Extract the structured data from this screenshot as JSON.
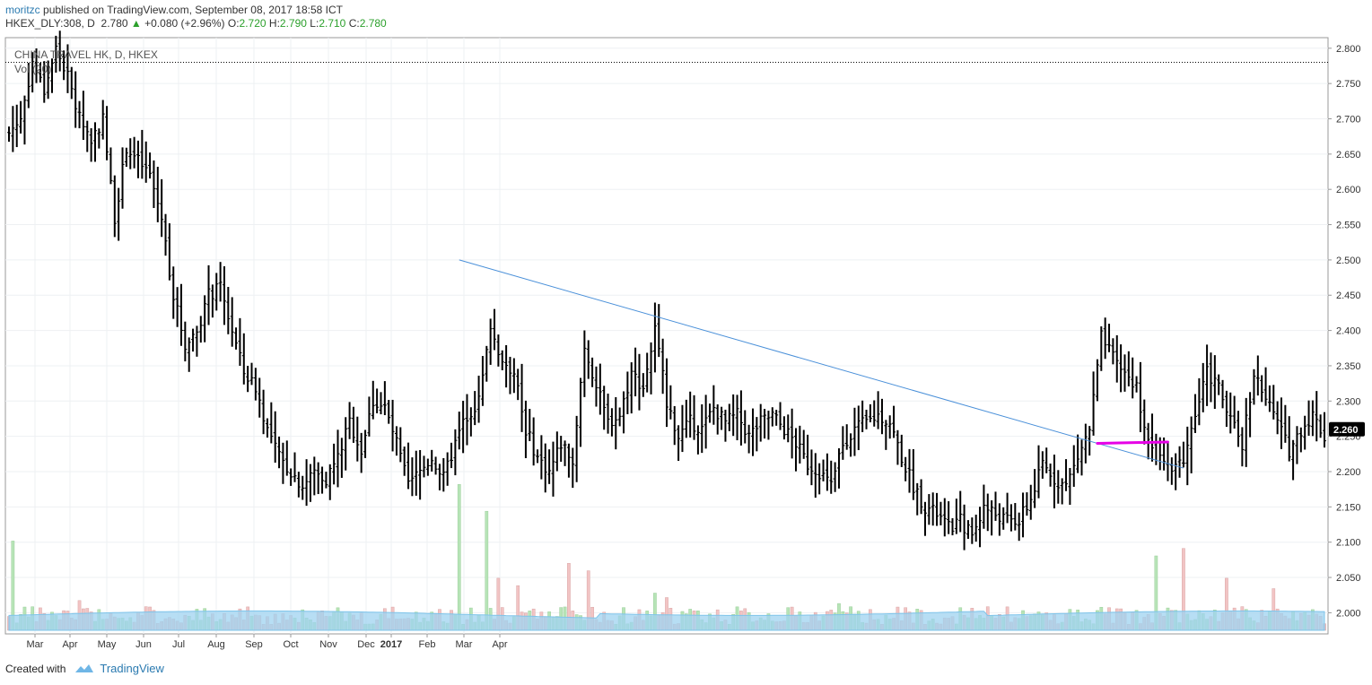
{
  "header": {
    "user": "moritzc",
    "published": "published on TradingView.com, September 08, 2017 18:58 ICT",
    "symbol": "HKEX_DLY:308, D",
    "last": "2.780",
    "change": "+0.080 (+2.96%)",
    "o_label": "O:",
    "o": "2.720",
    "h_label": "H:",
    "h": "2.790",
    "l_label": "L:",
    "l": "2.710",
    "c_label": "C:",
    "c": "2.780"
  },
  "legend": {
    "title": "CHINA TRAVEL HK, D, HKEX",
    "vol": "Vol (20)"
  },
  "footer": {
    "created": "Created with",
    "brand": "TradingView"
  },
  "colors": {
    "trendline": "#4a90d9",
    "highlight": "#e600e6",
    "up_vol": "#b7e4b7",
    "down_vol": "#f2c4c4",
    "vol_ma": "#9fd3f0",
    "bar": "#000000"
  },
  "chart_data": {
    "type": "ohlc",
    "price_axis": {
      "ticks": [
        "2.800",
        "2.750",
        "2.700",
        "2.650",
        "2.600",
        "2.550",
        "2.500",
        "2.450",
        "2.400",
        "2.350",
        "2.300",
        "2.250",
        "2.200",
        "2.150",
        "2.100",
        "2.050",
        "2.000"
      ],
      "ylim": [
        1.97,
        2.815
      ]
    },
    "x_labels": [
      "Mar",
      "Apr",
      "May",
      "Jun",
      "Jul",
      "Aug",
      "Sep",
      "Oct",
      "Nov",
      "Dec",
      "2017",
      "Feb",
      "Mar",
      "Apr"
    ],
    "last_price_label": "2.260",
    "reference_line": 2.78,
    "close_path": [
      [
        0,
        2.68
      ],
      [
        3,
        2.7
      ],
      [
        6,
        2.78
      ],
      [
        9,
        2.74
      ],
      [
        12,
        2.8
      ],
      [
        15,
        2.76
      ],
      [
        18,
        2.7
      ],
      [
        21,
        2.67
      ],
      [
        24,
        2.7
      ],
      [
        27,
        2.56
      ],
      [
        30,
        2.66
      ],
      [
        33,
        2.64
      ],
      [
        36,
        2.62
      ],
      [
        39,
        2.56
      ],
      [
        42,
        2.45
      ],
      [
        45,
        2.38
      ],
      [
        48,
        2.4
      ],
      [
        51,
        2.45
      ],
      [
        54,
        2.46
      ],
      [
        57,
        2.4
      ],
      [
        60,
        2.34
      ],
      [
        63,
        2.32
      ],
      [
        66,
        2.26
      ],
      [
        69,
        2.22
      ],
      [
        72,
        2.2
      ],
      [
        75,
        2.18
      ],
      [
        78,
        2.2
      ],
      [
        81,
        2.19
      ],
      [
        84,
        2.22
      ],
      [
        87,
        2.27
      ],
      [
        90,
        2.23
      ],
      [
        93,
        2.3
      ],
      [
        96,
        2.29
      ],
      [
        99,
        2.24
      ],
      [
        102,
        2.18
      ],
      [
        105,
        2.2
      ],
      [
        108,
        2.22
      ],
      [
        111,
        2.19
      ],
      [
        114,
        2.24
      ],
      [
        117,
        2.28
      ],
      [
        120,
        2.3
      ],
      [
        123,
        2.4
      ],
      [
        126,
        2.36
      ],
      [
        129,
        2.34
      ],
      [
        132,
        2.26
      ],
      [
        135,
        2.22
      ],
      [
        138,
        2.2
      ],
      [
        141,
        2.24
      ],
      [
        144,
        2.22
      ],
      [
        147,
        2.38
      ],
      [
        150,
        2.32
      ],
      [
        153,
        2.27
      ],
      [
        156,
        2.28
      ],
      [
        159,
        2.34
      ],
      [
        162,
        2.32
      ],
      [
        165,
        2.4
      ],
      [
        168,
        2.3
      ],
      [
        171,
        2.25
      ],
      [
        174,
        2.27
      ],
      [
        177,
        2.26
      ],
      [
        180,
        2.29
      ],
      [
        183,
        2.27
      ],
      [
        186,
        2.28
      ],
      [
        189,
        2.25
      ],
      [
        192,
        2.27
      ],
      [
        195,
        2.28
      ],
      [
        198,
        2.26
      ],
      [
        201,
        2.24
      ],
      [
        204,
        2.21
      ],
      [
        207,
        2.2
      ],
      [
        210,
        2.18
      ],
      [
        213,
        2.24
      ],
      [
        216,
        2.26
      ],
      [
        219,
        2.27
      ],
      [
        222,
        2.28
      ],
      [
        225,
        2.27
      ],
      [
        228,
        2.22
      ],
      [
        231,
        2.18
      ],
      [
        234,
        2.15
      ],
      [
        237,
        2.14
      ],
      [
        240,
        2.12
      ],
      [
        243,
        2.13
      ],
      [
        246,
        2.11
      ],
      [
        249,
        2.15
      ],
      [
        252,
        2.14
      ],
      [
        255,
        2.13
      ],
      [
        258,
        2.13
      ],
      [
        261,
        2.16
      ],
      [
        264,
        2.21
      ],
      [
        267,
        2.19
      ],
      [
        270,
        2.18
      ],
      [
        273,
        2.22
      ],
      [
        276,
        2.26
      ],
      [
        279,
        2.39
      ],
      [
        282,
        2.36
      ],
      [
        285,
        2.34
      ],
      [
        288,
        2.32
      ],
      [
        291,
        2.24
      ],
      [
        294,
        2.23
      ],
      [
        297,
        2.21
      ],
      [
        300,
        2.22
      ],
      [
        303,
        2.28
      ],
      [
        306,
        2.34
      ],
      [
        309,
        2.32
      ],
      [
        312,
        2.27
      ],
      [
        315,
        2.24
      ],
      [
        318,
        2.34
      ],
      [
        321,
        2.3
      ],
      [
        324,
        2.27
      ],
      [
        327,
        2.23
      ],
      [
        330,
        2.26
      ],
      [
        333,
        2.28
      ],
      [
        336,
        2.25
      ]
    ],
    "trendline": {
      "from": [
        115,
        2.5
      ],
      "to": [
        300,
        2.205
      ]
    },
    "highlight_line": {
      "from": [
        278,
        2.24
      ],
      "to": [
        296,
        2.242
      ]
    },
    "volume": {
      "spikes": [
        [
          1,
          0.6
        ],
        [
          18,
          0.2
        ],
        [
          115,
          0.98
        ],
        [
          122,
          0.8
        ],
        [
          125,
          0.35
        ],
        [
          130,
          0.3
        ],
        [
          143,
          0.45
        ],
        [
          148,
          0.4
        ],
        [
          165,
          0.25
        ],
        [
          168,
          0.22
        ],
        [
          212,
          0.18
        ],
        [
          293,
          0.5
        ],
        [
          300,
          0.55
        ],
        [
          311,
          0.35
        ],
        [
          323,
          0.28
        ]
      ]
    }
  }
}
